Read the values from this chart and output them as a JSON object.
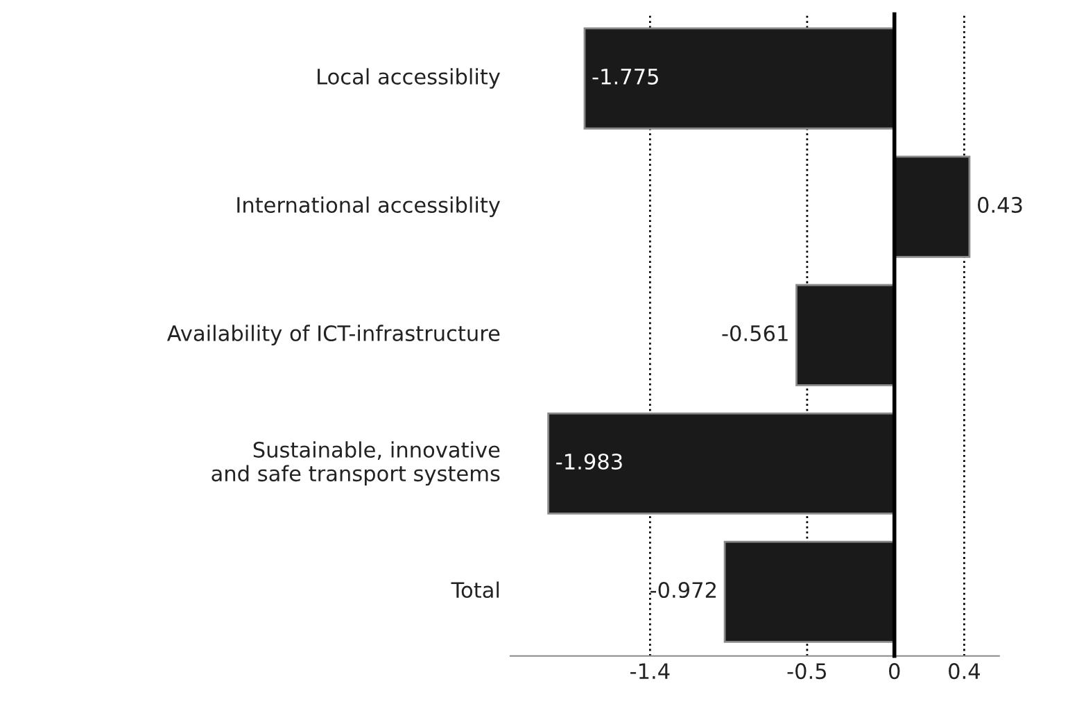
{
  "chart_data": {
    "type": "bar",
    "orientation": "horizontal",
    "categories": [
      "Local accessiblity",
      "International accessiblity",
      "Availability of ICT-infrastructure",
      "Sustainable, innovative\nand safe transport systems",
      "Total"
    ],
    "values": [
      -1.775,
      0.43,
      -0.561,
      -1.983,
      -0.972
    ],
    "color": "#1a1a1a",
    "xlim": [
      -2.2,
      0.6
    ],
    "xticks": [
      -1.4,
      -0.5,
      0,
      0.4
    ],
    "grid": "x",
    "data_labels": true
  }
}
